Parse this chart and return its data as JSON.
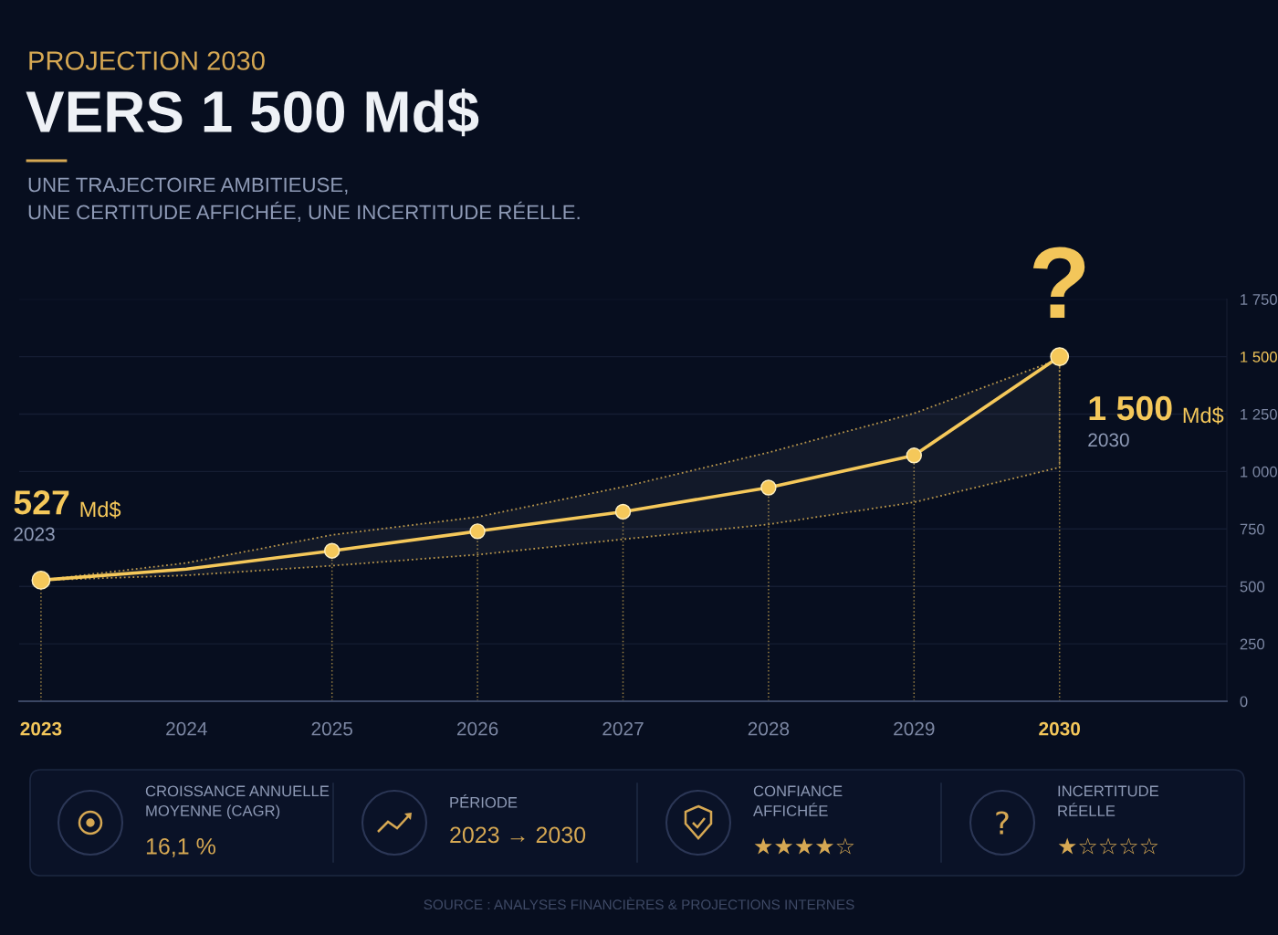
{
  "chart_data": [
    {
      "type": "line",
      "title": "VERS 1 500 Md$",
      "subtitle": "UNE TRAJECTOIRE AMBITIEUSE,\nUNE CERTITUDE AFFICHÉE, UNE INCERTITUDE RÉELLE.",
      "categories": [
        "2023",
        "2024",
        "2025",
        "2026",
        "2027",
        "2028",
        "2029",
        "2030"
      ],
      "series": [
        {
          "type": "line",
          "color": "#f5c85a",
          "values": [
            527,
            575,
            655,
            740,
            825,
            930,
            1070,
            1500
          ],
          "lower": [
            527,
            548,
            590,
            638,
            705,
            770,
            866,
            1018
          ],
          "upper": [
            527,
            602,
            724,
            802,
            933,
            1083,
            1253,
            1490
          ],
          "value_labels": [
            "527 Md$",
            null,
            null,
            null,
            null,
            null,
            null,
            "1 500 Md$"
          ]
        },
        {
          "type": "lollipop",
          "color": "#f5c85a",
          "marker": "circle",
          "values": [
            527,
            null,
            655,
            740,
            825,
            930,
            1070,
            1500
          ]
        }
      ],
      "ylim": [
        0,
        1750
      ],
      "yticks": [
        0,
        250,
        500,
        750,
        {
          "value": 1000,
          "label": "1 000"
        },
        {
          "value": 1250,
          "label": "1 250"
        },
        {
          "value": 1500,
          "label": "1 500"
        },
        {
          "value": 1750,
          "label": "1 750"
        }
      ],
      "grid": "y",
      "annotations": [
        "PROJECTION 2030",
        {
          "text": "?",
          "x": "2030",
          "y": 1500
        },
        "SOURCE : ANALYSES FINANCIÈRES & PROJECTIONS INTERNES"
      ]
    },
    {
      "type": "other",
      "annotations": [
        "CROISSANCE ANNUELLE\nMOYENNE (CAGR)",
        "16,1 %",
        "PÉRIODE",
        "2023 → 2030",
        "CONFIANCE\nAFFICHÉE",
        "★★★★☆",
        "INCERTITUDE\nRÉELLE",
        "★☆☆☆☆"
      ]
    }
  ]
}
